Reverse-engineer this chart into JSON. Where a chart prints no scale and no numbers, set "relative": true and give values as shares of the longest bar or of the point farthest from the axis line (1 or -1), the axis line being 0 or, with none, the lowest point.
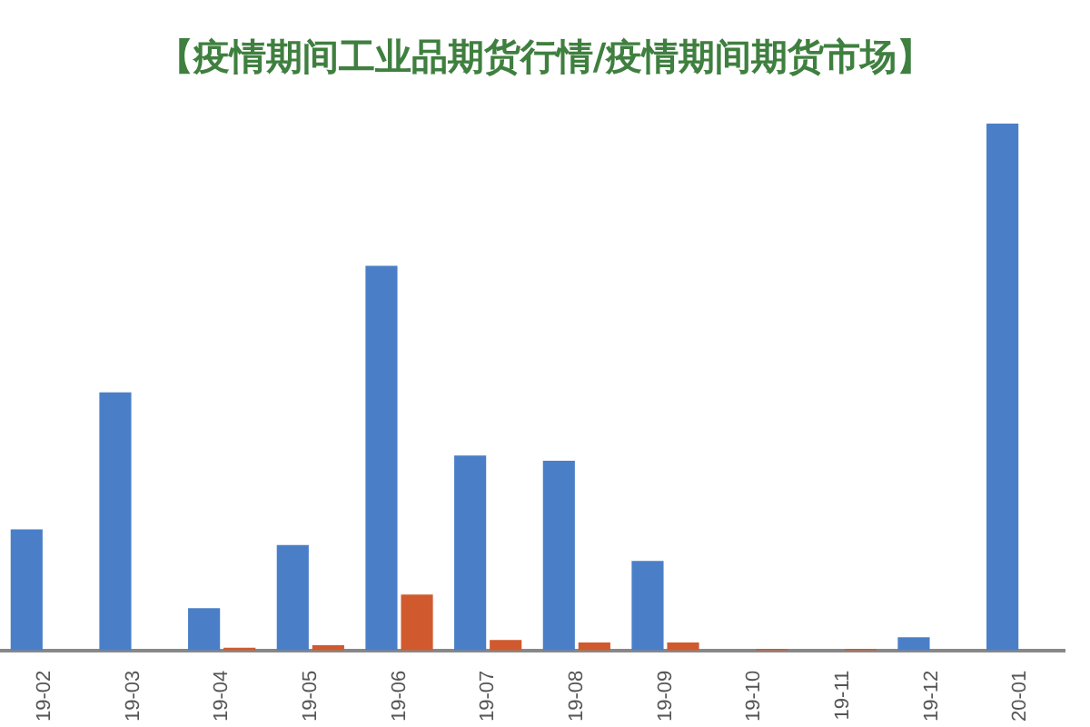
{
  "chart_data": {
    "type": "bar",
    "title": "【疫情期间工业品期货行情/疫情期间期货市场】",
    "relative": true,
    "grid": false,
    "legend": false,
    "categories": [
      "19-02",
      "19-03",
      "19-04",
      "19-05",
      "19-06",
      "19-07",
      "19-08",
      "19-09",
      "19-10",
      "19-11",
      "19-12",
      "20-01"
    ],
    "series": [
      {
        "color": "#4a7fc8",
        "values": [
          0.23,
          0.49,
          0.08,
          0.2,
          0.73,
          0.37,
          0.36,
          0.17,
          0,
          0,
          0.025,
          1
        ]
      },
      {
        "color": "#d05a2e",
        "values": [
          null,
          null,
          0.005,
          0.01,
          0.106,
          0.02,
          0.015,
          0.015,
          0.003,
          0.003,
          null,
          null
        ]
      }
    ]
  }
}
